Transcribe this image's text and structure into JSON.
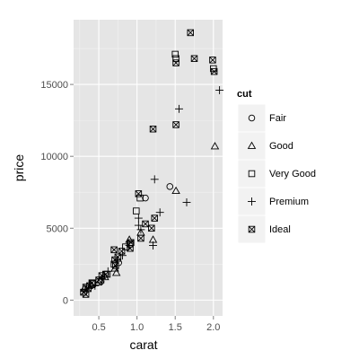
{
  "chart_data": {
    "type": "scatter",
    "title": "",
    "xlabel": "carat",
    "ylabel": "price",
    "xlim": [
      0.17,
      2.12
    ],
    "ylim": [
      -1100,
      19500
    ],
    "xticks": [
      0.5,
      1.0,
      1.5,
      2.0
    ],
    "xtick_labels": [
      "0.5",
      "1.0",
      "1.5",
      "2.0"
    ],
    "yticks": [
      0,
      5000,
      10000,
      15000
    ],
    "ytick_labels": [
      "0",
      "5000",
      "10000",
      "15000"
    ],
    "grid": true,
    "legend": {
      "title": "cut",
      "position": "right"
    },
    "series": [
      {
        "name": "Fair",
        "shape": "circle",
        "points": [
          [
            1.43,
            7900
          ],
          [
            1.11,
            7100
          ],
          [
            0.76,
            2600
          ],
          [
            0.53,
            1300
          ]
        ]
      },
      {
        "name": "Good",
        "shape": "triangle",
        "points": [
          [
            2.02,
            10700
          ],
          [
            1.51,
            7600
          ],
          [
            0.9,
            4200
          ],
          [
            1.21,
            4200
          ],
          [
            1.05,
            4700
          ],
          [
            0.71,
            2200
          ],
          [
            0.73,
            1900
          ],
          [
            0.4,
            1050
          ],
          [
            0.31,
            800
          ],
          [
            0.52,
            1400
          ],
          [
            0.58,
            1600
          ]
        ]
      },
      {
        "name": "Very Good",
        "shape": "square",
        "points": [
          [
            1.5,
            17100
          ],
          [
            1.51,
            16800
          ],
          [
            2.0,
            16100
          ],
          [
            0.99,
            6200
          ],
          [
            1.04,
            7100
          ],
          [
            0.85,
            3700
          ],
          [
            0.7,
            2500
          ],
          [
            0.33,
            900
          ],
          [
            0.42,
            1150
          ],
          [
            0.61,
            1800
          ],
          [
            0.91,
            3900
          ],
          [
            0.5,
            1250
          ]
        ]
      },
      {
        "name": "Premium",
        "shape": "plus",
        "points": [
          [
            2.08,
            14600
          ],
          [
            1.55,
            13300
          ],
          [
            1.65,
            6800
          ],
          [
            1.3,
            6100
          ],
          [
            1.23,
            8400
          ],
          [
            1.02,
            5700
          ],
          [
            1.02,
            5200
          ],
          [
            1.21,
            3800
          ],
          [
            1.05,
            4900
          ],
          [
            0.9,
            3800
          ],
          [
            0.74,
            2700
          ],
          [
            0.54,
            1500
          ],
          [
            0.32,
            700
          ],
          [
            0.45,
            1000
          ],
          [
            0.62,
            2000
          ],
          [
            0.81,
            3100
          ]
        ]
      },
      {
        "name": "Ideal",
        "shape": "square-x",
        "points": [
          [
            1.7,
            18600
          ],
          [
            1.51,
            16500
          ],
          [
            1.99,
            16700
          ],
          [
            1.75,
            16800
          ],
          [
            2.01,
            15900
          ],
          [
            1.21,
            11900
          ],
          [
            1.51,
            12200
          ],
          [
            1.02,
            7400
          ],
          [
            1.11,
            5300
          ],
          [
            1.23,
            5700
          ],
          [
            1.19,
            5000
          ],
          [
            1.05,
            4300
          ],
          [
            0.91,
            3600
          ],
          [
            0.71,
            2800
          ],
          [
            0.7,
            3500
          ],
          [
            0.72,
            2400
          ],
          [
            0.54,
            1700
          ],
          [
            0.41,
            1200
          ],
          [
            0.3,
            550
          ],
          [
            0.36,
            800
          ],
          [
            0.38,
            1000
          ],
          [
            0.5,
            1400
          ],
          [
            0.59,
            1800
          ],
          [
            0.8,
            3400
          ],
          [
            0.92,
            4000
          ],
          [
            0.75,
            3000
          ],
          [
            0.33,
            400
          ]
        ]
      }
    ]
  }
}
